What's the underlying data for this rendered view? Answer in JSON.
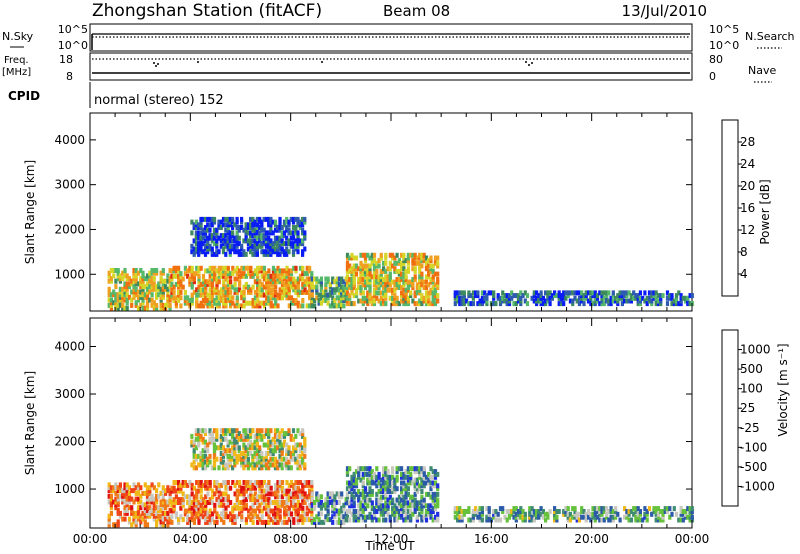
{
  "header": {
    "station": "Zhongshan Station (fitACF)",
    "beam": "Beam 08",
    "date": "13/Jul/2010"
  },
  "strip_labels": {
    "nsky": "N.Sky",
    "nsky_ticks": [
      "10^5",
      "10^0"
    ],
    "nsearch": "N.Search",
    "nsearch_ticks": [
      "10^5",
      "10^0"
    ],
    "freq_line1": "Freq.",
    "freq_line2": "[MHz]",
    "freq_ticks": [
      "18",
      "8"
    ],
    "nave": "Nave",
    "nave_ticks": [
      "80",
      "0"
    ],
    "cpid": "CPID",
    "cpid_text": "normal (stereo) 152"
  },
  "chart_data": [
    {
      "type": "heatmap",
      "name": "power-panel",
      "ylabel": "Slant Range [km]",
      "xlabel": "",
      "x_ticks": [
        "00:00",
        "04:00",
        "08:00",
        "12:00",
        "16:00",
        "20:00",
        "00:00"
      ],
      "xlim_hours": [
        0,
        24
      ],
      "y_ticks": [
        1000,
        2000,
        3000,
        4000
      ],
      "ylim_km": [
        180,
        4600
      ],
      "grid": false,
      "colorbar": {
        "label": "Power [dB]",
        "tick_labels": [
          "4",
          "8",
          "12",
          "16",
          "20",
          "24",
          "28"
        ],
        "colors": [
          "#0a1cf5",
          "#2e5bb0",
          "#3d8a5e",
          "#55b86a",
          "#d6d628",
          "#f0a020",
          "#f07010",
          "#e02a10"
        ]
      },
      "regions": [
        {
          "t": [
            0.7,
            3.2
          ],
          "r": [
            300,
            1200
          ],
          "level": 0.55
        },
        {
          "t": [
            3.2,
            8.8
          ],
          "r": [
            350,
            1250
          ],
          "level": 0.65
        },
        {
          "t": [
            8.8,
            10.2
          ],
          "r": [
            350,
            1000
          ],
          "level": 0.4
        },
        {
          "t": [
            10.2,
            13.8
          ],
          "r": [
            400,
            1500
          ],
          "level": 0.6
        },
        {
          "t": [
            4.0,
            8.5
          ],
          "r": [
            1500,
            2300
          ],
          "level": 0.15
        },
        {
          "t": [
            14.5,
            24.0
          ],
          "r": [
            400,
            700
          ],
          "level": 0.2
        }
      ]
    },
    {
      "type": "heatmap",
      "name": "velocity-panel",
      "ylabel": "Slant Range [km]",
      "xlabel": "Time UT",
      "x_ticks": [
        "00:00",
        "04:00",
        "08:00",
        "12:00",
        "16:00",
        "20:00",
        "00:00"
      ],
      "xlim_hours": [
        0,
        24
      ],
      "y_ticks": [
        1000,
        2000,
        3000,
        4000
      ],
      "ylim_km": [
        180,
        4600
      ],
      "grid": false,
      "colorbar": {
        "label": "Velocity [m s⁻¹]",
        "tick_labels": [
          "1000",
          "500",
          "100",
          "25",
          "-25",
          "-100",
          "-500",
          "-1000"
        ],
        "colors": [
          "#1f2fe0",
          "#2b5aa8",
          "#3e8a72",
          "#66c23c",
          "#c8c8c0",
          "#f0b818",
          "#f07a18",
          "#f04418",
          "#e01010"
        ]
      },
      "regions": [
        {
          "t": [
            0.7,
            3.2
          ],
          "r": [
            300,
            1200
          ],
          "level": 0.7
        },
        {
          "t": [
            3.2,
            8.8
          ],
          "r": [
            350,
            1250
          ],
          "level": 0.72
        },
        {
          "t": [
            8.8,
            10.2
          ],
          "r": [
            350,
            1000
          ],
          "level": 0.3
        },
        {
          "t": [
            10.2,
            13.8
          ],
          "r": [
            400,
            1500
          ],
          "level": 0.3
        },
        {
          "t": [
            4.0,
            8.5
          ],
          "r": [
            1500,
            2300
          ],
          "level": 0.5
        },
        {
          "t": [
            14.5,
            24.0
          ],
          "r": [
            400,
            700
          ],
          "level": 0.35
        }
      ]
    }
  ]
}
